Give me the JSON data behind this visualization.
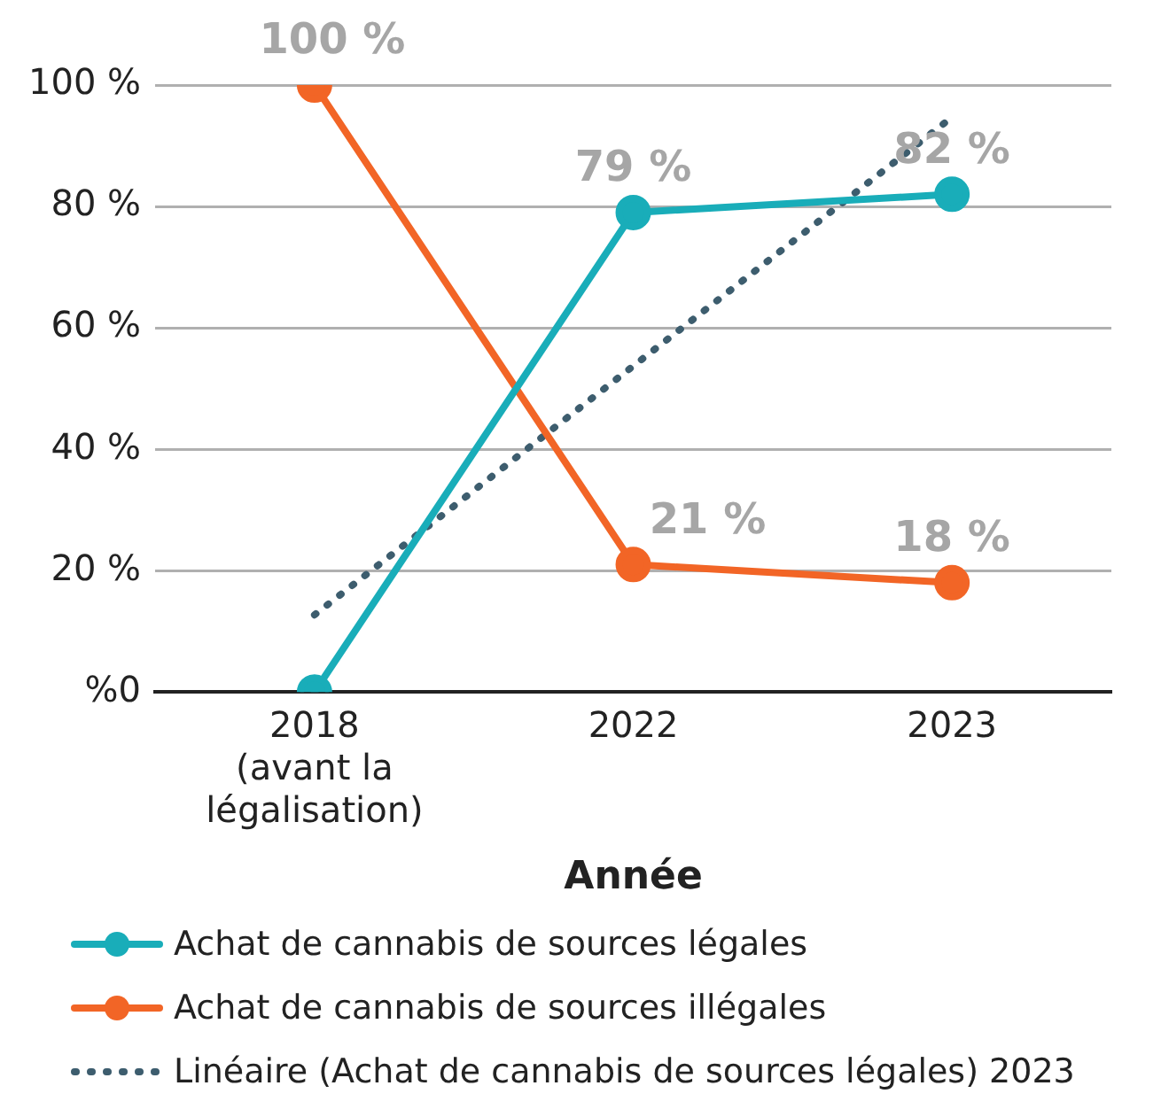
{
  "chart_data": {
    "type": "line",
    "xlabel": "Année",
    "categories": [
      "2018\n(avant la\nlégalisation)",
      "2022",
      "2023"
    ],
    "series": [
      {
        "name": "Achat de cannabis de sources légales",
        "color": "#19adb9",
        "values": [
          0,
          79,
          82
        ],
        "value_labels": [
          null,
          "79 %",
          "82 %"
        ],
        "marker": "circle",
        "line_style": "solid"
      },
      {
        "name": "Achat de cannabis de sources illégales",
        "color": "#f26526",
        "values": [
          100,
          21,
          18
        ],
        "value_labels": [
          "100 %",
          "21 %",
          "18 %"
        ],
        "marker": "circle",
        "line_style": "solid"
      },
      {
        "name": "Linéaire (Achat de cannabis de sources légales) 2023",
        "color": "#3d5d6e",
        "values": [
          12.7,
          53.7,
          94.7
        ],
        "marker": "none",
        "line_style": "dotted"
      }
    ],
    "ylim": [
      0,
      100
    ],
    "yticks": [
      {
        "value": 0,
        "label": "%0"
      },
      {
        "value": 20,
        "label": "20 %"
      },
      {
        "value": 40,
        "label": "40 %"
      },
      {
        "value": 60,
        "label": "60 %"
      },
      {
        "value": 80,
        "label": "80 %"
      },
      {
        "value": 100,
        "label": "100 %"
      }
    ],
    "grid": "y",
    "legend": "bottom"
  }
}
